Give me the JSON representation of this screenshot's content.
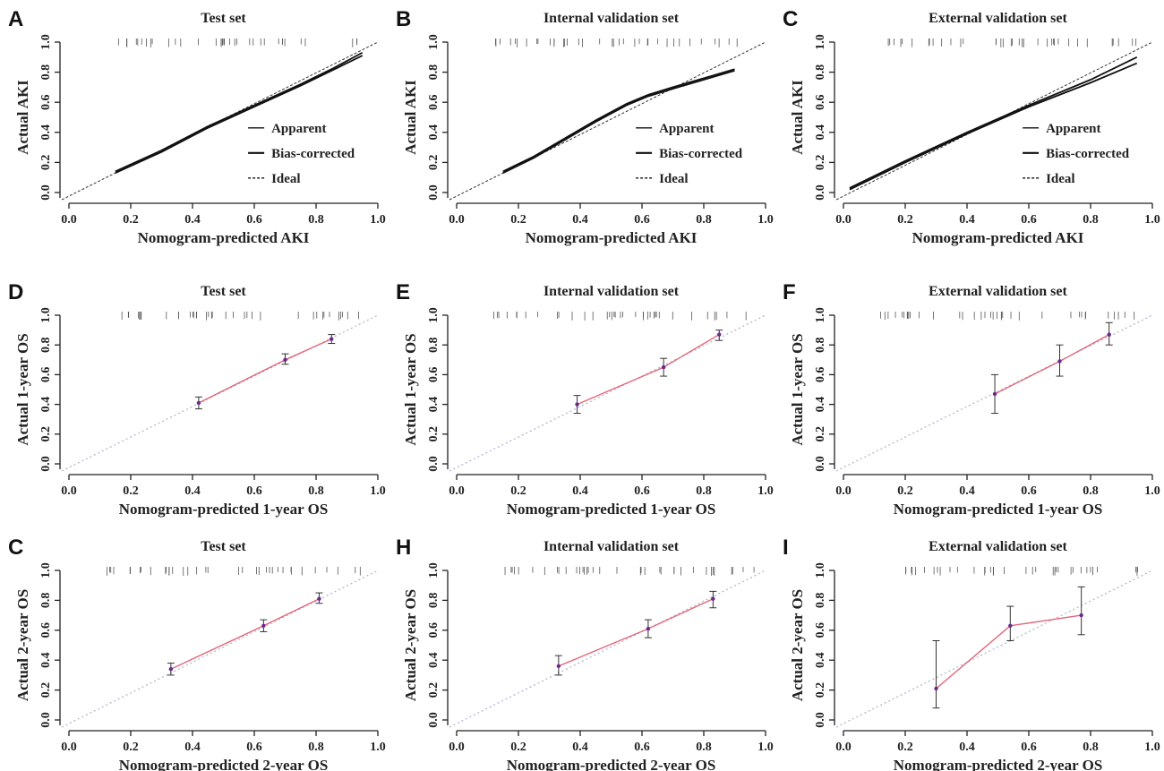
{
  "chart_data": [
    {
      "panel": "A",
      "type": "line",
      "title": "Test set",
      "xlabel": "Nomogram-predicted AKI",
      "ylabel": "Actual AKI",
      "xlim": [
        0,
        1
      ],
      "ylim": [
        0,
        1
      ],
      "xticks": [
        "0.0",
        "0.2",
        "0.4",
        "0.6",
        "0.8",
        "1.0"
      ],
      "yticks": [
        "0.0",
        "0.2",
        "0.4",
        "0.6",
        "0.8",
        "1.0"
      ],
      "legend": [
        "Apparent",
        "Bias-corrected",
        "Ideal"
      ],
      "ideal": [
        [
          0,
          0
        ],
        [
          1,
          1
        ]
      ],
      "series": [
        {
          "name": "Apparent",
          "x": [
            0.15,
            0.3,
            0.45,
            0.6,
            0.75,
            0.85,
            0.95
          ],
          "y": [
            0.14,
            0.28,
            0.44,
            0.58,
            0.72,
            0.82,
            0.93
          ]
        },
        {
          "name": "Bias-corrected",
          "x": [
            0.15,
            0.3,
            0.45,
            0.6,
            0.75,
            0.85,
            0.95
          ],
          "y": [
            0.13,
            0.27,
            0.43,
            0.57,
            0.71,
            0.81,
            0.91
          ]
        }
      ],
      "rug": true
    },
    {
      "panel": "B",
      "type": "line",
      "title": "Internal validation set",
      "xlabel": "Nomogram-predicted AKI",
      "ylabel": "Actual AKI",
      "xlim": [
        0,
        1
      ],
      "ylim": [
        0,
        1
      ],
      "xticks": [
        "0.0",
        "0.2",
        "0.4",
        "0.6",
        "0.8",
        "1.0"
      ],
      "yticks": [
        "0.0",
        "0.2",
        "0.4",
        "0.6",
        "0.8",
        "1.0"
      ],
      "legend": [
        "Apparent",
        "Bias-corrected",
        "Ideal"
      ],
      "ideal": [
        [
          0,
          0
        ],
        [
          1,
          1
        ]
      ],
      "series": [
        {
          "name": "Apparent",
          "x": [
            0.15,
            0.25,
            0.35,
            0.45,
            0.55,
            0.62,
            0.7,
            0.8,
            0.9
          ],
          "y": [
            0.14,
            0.24,
            0.36,
            0.48,
            0.59,
            0.65,
            0.7,
            0.76,
            0.82
          ]
        },
        {
          "name": "Bias-corrected",
          "x": [
            0.15,
            0.25,
            0.35,
            0.45,
            0.55,
            0.62,
            0.7,
            0.8,
            0.9
          ],
          "y": [
            0.13,
            0.23,
            0.35,
            0.47,
            0.58,
            0.64,
            0.69,
            0.75,
            0.81
          ]
        }
      ],
      "rug": true
    },
    {
      "panel": "C",
      "type": "line",
      "title": "External validation set",
      "xlabel": "Nomogram-predicted AKI",
      "ylabel": "Actual AKI",
      "xlim": [
        0,
        1
      ],
      "ylim": [
        0,
        1
      ],
      "xticks": [
        "0.0",
        "0.2",
        "0.4",
        "0.6",
        "0.8",
        "1.0"
      ],
      "yticks": [
        "0.0",
        "0.2",
        "0.4",
        "0.6",
        "0.8",
        "1.0"
      ],
      "legend": [
        "Apparent",
        "Bias-corrected",
        "Ideal"
      ],
      "ideal": [
        [
          0,
          0
        ],
        [
          1,
          1
        ]
      ],
      "series": [
        {
          "name": "Apparent",
          "x": [
            0.02,
            0.2,
            0.4,
            0.6,
            0.8,
            0.95
          ],
          "y": [
            0.03,
            0.21,
            0.4,
            0.58,
            0.75,
            0.9
          ]
        },
        {
          "name": "Bias-corrected",
          "x": [
            0.02,
            0.2,
            0.4,
            0.6,
            0.8,
            0.95
          ],
          "y": [
            0.02,
            0.2,
            0.39,
            0.57,
            0.73,
            0.86
          ]
        }
      ],
      "rug": true
    },
    {
      "panel": "D",
      "type": "line",
      "title": "Test set",
      "xlabel": "Nomogram-predicted 1-year OS",
      "ylabel": "Actual 1-year OS",
      "xlim": [
        0,
        1
      ],
      "ylim": [
        0,
        1
      ],
      "xticks": [
        "0.0",
        "0.2",
        "0.4",
        "0.6",
        "0.8",
        "1.0"
      ],
      "yticks": [
        "0.0",
        "0.2",
        "0.4",
        "0.6",
        "0.8",
        "1.0"
      ],
      "ideal": [
        [
          0,
          0
        ],
        [
          1,
          1
        ]
      ],
      "points": [
        {
          "x": 0.42,
          "y": 0.41,
          "lo": 0.37,
          "hi": 0.45
        },
        {
          "x": 0.7,
          "y": 0.7,
          "lo": 0.67,
          "hi": 0.74
        },
        {
          "x": 0.85,
          "y": 0.84,
          "lo": 0.81,
          "hi": 0.87
        }
      ],
      "rug": true
    },
    {
      "panel": "E",
      "type": "line",
      "title": "Internal validation set",
      "xlabel": "Nomogram-predicted 1-year OS",
      "ylabel": "Actual 1-year OS",
      "xlim": [
        0,
        1
      ],
      "ylim": [
        0,
        1
      ],
      "xticks": [
        "0.0",
        "0.2",
        "0.4",
        "0.6",
        "0.8",
        "1.0"
      ],
      "yticks": [
        "0.0",
        "0.2",
        "0.4",
        "0.6",
        "0.8",
        "1.0"
      ],
      "ideal": [
        [
          0,
          0
        ],
        [
          1,
          1
        ]
      ],
      "points": [
        {
          "x": 0.39,
          "y": 0.4,
          "lo": 0.34,
          "hi": 0.46
        },
        {
          "x": 0.67,
          "y": 0.65,
          "lo": 0.59,
          "hi": 0.71
        },
        {
          "x": 0.85,
          "y": 0.87,
          "lo": 0.83,
          "hi": 0.9
        }
      ],
      "rug": true
    },
    {
      "panel": "F",
      "type": "line",
      "title": "External validation set",
      "xlabel": "Nomogram-predicted 1-year OS",
      "ylabel": "Actual 1-year OS",
      "xlim": [
        0,
        1
      ],
      "ylim": [
        0,
        1
      ],
      "xticks": [
        "0.0",
        "0.2",
        "0.4",
        "0.6",
        "0.8",
        "1.0"
      ],
      "yticks": [
        "0.0",
        "0.2",
        "0.4",
        "0.6",
        "0.8",
        "1.0"
      ],
      "ideal": [
        [
          0,
          0
        ],
        [
          1,
          1
        ]
      ],
      "points": [
        {
          "x": 0.49,
          "y": 0.47,
          "lo": 0.34,
          "hi": 0.6
        },
        {
          "x": 0.7,
          "y": 0.69,
          "lo": 0.59,
          "hi": 0.8
        },
        {
          "x": 0.86,
          "y": 0.87,
          "lo": 0.8,
          "hi": 0.95
        }
      ],
      "rug": true
    },
    {
      "panel": "C",
      "type": "line",
      "title": "Test set",
      "xlabel": "Nomogram-predicted 2-year OS",
      "ylabel": "Actual 2-year OS",
      "xlim": [
        0,
        1
      ],
      "ylim": [
        0,
        1
      ],
      "xticks": [
        "0.0",
        "0.2",
        "0.4",
        "0.6",
        "0.8",
        "1.0"
      ],
      "yticks": [
        "0.0",
        "0.2",
        "0.4",
        "0.6",
        "0.8",
        "1.0"
      ],
      "ideal": [
        [
          0,
          0
        ],
        [
          1,
          1
        ]
      ],
      "points": [
        {
          "x": 0.33,
          "y": 0.34,
          "lo": 0.3,
          "hi": 0.38
        },
        {
          "x": 0.63,
          "y": 0.63,
          "lo": 0.59,
          "hi": 0.67
        },
        {
          "x": 0.81,
          "y": 0.81,
          "lo": 0.78,
          "hi": 0.85
        }
      ],
      "rug": true
    },
    {
      "panel": "H",
      "type": "line",
      "title": "Internal validation set",
      "xlabel": "Nomogram-predicted 2-year OS",
      "ylabel": "Actual 2-year OS",
      "xlim": [
        0,
        1
      ],
      "ylim": [
        0,
        1
      ],
      "xticks": [
        "0.0",
        "0.2",
        "0.4",
        "0.6",
        "0.8",
        "1.0"
      ],
      "yticks": [
        "0.0",
        "0.2",
        "0.4",
        "0.6",
        "0.8",
        "1.0"
      ],
      "ideal": [
        [
          0,
          0
        ],
        [
          1,
          1
        ]
      ],
      "points": [
        {
          "x": 0.33,
          "y": 0.36,
          "lo": 0.3,
          "hi": 0.43
        },
        {
          "x": 0.62,
          "y": 0.61,
          "lo": 0.55,
          "hi": 0.67
        },
        {
          "x": 0.83,
          "y": 0.81,
          "lo": 0.75,
          "hi": 0.86
        }
      ],
      "rug": true
    },
    {
      "panel": "I",
      "type": "line",
      "title": "External validation set",
      "xlabel": "Nomogram-predicted 2-year OS",
      "ylabel": "Actual 2-year OS",
      "xlim": [
        0,
        1
      ],
      "ylim": [
        0,
        1
      ],
      "xticks": [
        "0.0",
        "0.2",
        "0.4",
        "0.6",
        "0.8",
        "1.0"
      ],
      "yticks": [
        "0.0",
        "0.2",
        "0.4",
        "0.6",
        "0.8",
        "1.0"
      ],
      "ideal": [
        [
          0,
          0
        ],
        [
          1,
          1
        ]
      ],
      "points": [
        {
          "x": 0.3,
          "y": 0.21,
          "lo": 0.08,
          "hi": 0.53
        },
        {
          "x": 0.54,
          "y": 0.63,
          "lo": 0.53,
          "hi": 0.76
        },
        {
          "x": 0.77,
          "y": 0.7,
          "lo": 0.57,
          "hi": 0.89
        }
      ],
      "rug": true
    }
  ],
  "colors": {
    "axis": "#222222",
    "curve": "#111111",
    "ideal_dashed": "#333333",
    "ideal_dotted": "#a9b3c9",
    "fit_line": "#e2687c",
    "point": "#6b2a8c",
    "error_bar": "#333333"
  }
}
